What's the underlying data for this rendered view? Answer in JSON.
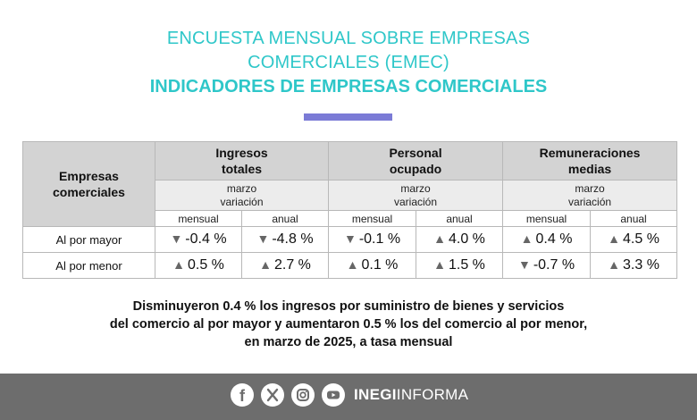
{
  "header": {
    "title_line1": "ENCUESTA MENSUAL SOBRE EMPRESAS",
    "title_line2": "COMERCIALES (EMEC)",
    "subtitle": "INDICADORES DE EMPRESAS COMERCIALES",
    "accent_color": "#2fc7c9",
    "bar_color": "#7b7bd6"
  },
  "table": {
    "corner_line1": "Empresas",
    "corner_line2": "comerciales",
    "groups": [
      {
        "line1": "Ingresos",
        "line2": "totales",
        "sub1": "marzo",
        "sub2": "variación"
      },
      {
        "line1": "Personal",
        "line2": "ocupado",
        "sub1": "marzo",
        "sub2": "variación"
      },
      {
        "line1": "Remuneraciones",
        "line2": "medias",
        "sub1": "marzo",
        "sub2": "variación"
      }
    ],
    "columns": [
      "mensual",
      "anual",
      "mensual",
      "anual",
      "mensual",
      "anual"
    ],
    "rows": [
      {
        "label": "Al por mayor",
        "cells": [
          {
            "arrow": "▼",
            "value": "-0.4 %"
          },
          {
            "arrow": "▼",
            "value": "-4.8 %"
          },
          {
            "arrow": "▼",
            "value": "-0.1 %"
          },
          {
            "arrow": "▲",
            "value": "4.0 %"
          },
          {
            "arrow": "▲",
            "value": "0.4 %"
          },
          {
            "arrow": "▲",
            "value": "4.5 %"
          }
        ]
      },
      {
        "label": "Al por menor",
        "cells": [
          {
            "arrow": "▲",
            "value": "0.5 %"
          },
          {
            "arrow": "▲",
            "value": "2.7 %"
          },
          {
            "arrow": "▲",
            "value": "0.1 %"
          },
          {
            "arrow": "▲",
            "value": "1.5 %"
          },
          {
            "arrow": "▼",
            "value": "-0.7 %"
          },
          {
            "arrow": "▲",
            "value": "3.3 %"
          }
        ]
      }
    ]
  },
  "summary": {
    "line1": "Disminuyeron 0.4 % los ingresos por suministro de bienes y servicios",
    "line2": "del comercio al por mayor y aumentaron 0.5 % los del comercio al por menor,",
    "line3": "en marzo de 2025, a tasa mensual"
  },
  "footer": {
    "icons": [
      "facebook-icon",
      "x-icon",
      "instagram-icon",
      "youtube-icon"
    ],
    "brand_bold": "INEGI",
    "brand_rest": "INFORMA",
    "bg_color": "#6d6d6d"
  }
}
